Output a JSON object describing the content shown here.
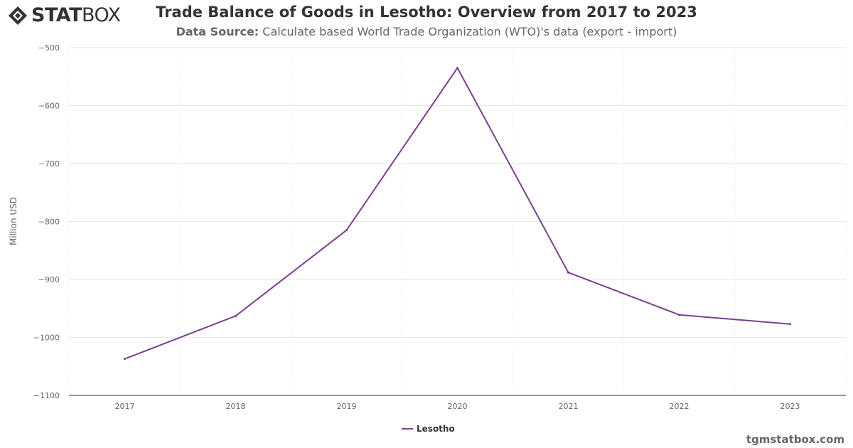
{
  "header": {
    "logo_text_bold": "STAT",
    "logo_text_regular": "BOX",
    "title": "Trade Balance of Goods in Lesotho: Overview from 2017 to 2023",
    "subtitle_label": "Data Source:",
    "subtitle_text": "Calculate based World Trade Organization (WTO)'s data (export - import)"
  },
  "footer": {
    "watermark": "tgmstatbox.com"
  },
  "colors": {
    "series": "#7b3f8f",
    "grid": "#e6e6e6",
    "axis": "#333333"
  },
  "chart_data": {
    "type": "line",
    "title": "Trade Balance of Goods in Lesotho: Overview from 2017 to 2023",
    "xlabel": "",
    "ylabel": "Million USD",
    "categories": [
      "2017",
      "2018",
      "2019",
      "2020",
      "2021",
      "2022",
      "2023"
    ],
    "series": [
      {
        "name": "Lesotho",
        "values": [
          -1037,
          -963,
          -815,
          -535,
          -888,
          -961,
          -977
        ]
      }
    ],
    "ylim": [
      -1100,
      -500
    ],
    "yticks": [
      -500,
      -600,
      -700,
      -800,
      -900,
      -1000,
      -1100
    ],
    "ytick_labels": [
      "−500",
      "−600",
      "−700",
      "−800",
      "−900",
      "−1000",
      "−1100"
    ],
    "grid": true,
    "legend": "bottom-center"
  }
}
